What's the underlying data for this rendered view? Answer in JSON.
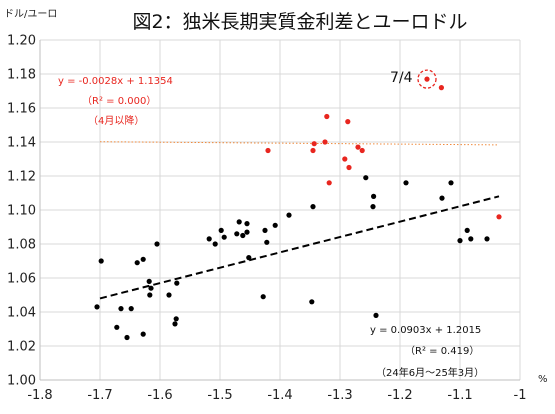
{
  "chart_data": {
    "type": "scatter",
    "title": "図2：独米長期実質金利差とユーロドル",
    "ylabel": "ドル/ユーロ",
    "xlabel": "%",
    "xlim": [
      -1.8,
      -1.0
    ],
    "ylim": [
      1.0,
      1.2
    ],
    "x_ticks": [
      "-1.8",
      "-1.7",
      "-1.6",
      "-1.5",
      "-1.4",
      "-1.3",
      "-1.2",
      "-1.1",
      "-1"
    ],
    "y_ticks": [
      "1.00",
      "1.02",
      "1.04",
      "1.06",
      "1.08",
      "1.10",
      "1.12",
      "1.14",
      "1.16",
      "1.18",
      "1.20"
    ],
    "grid": true,
    "colors": {
      "black_series": "#000000",
      "red_series": "#e8261f",
      "grid": "#d9d9d9",
      "trend_red": "#f08a3c"
    },
    "series": [
      {
        "period": "24年6月〜25年3月",
        "color": "#000000",
        "points": [
          [
            -1.705,
            1.043
          ],
          [
            -1.698,
            1.07
          ],
          [
            -1.672,
            1.031
          ],
          [
            -1.665,
            1.042
          ],
          [
            -1.655,
            1.025
          ],
          [
            -1.648,
            1.042
          ],
          [
            -1.638,
            1.069
          ],
          [
            -1.628,
            1.071
          ],
          [
            -1.628,
            1.027
          ],
          [
            -1.618,
            1.058
          ],
          [
            -1.617,
            1.05
          ],
          [
            -1.615,
            1.054
          ],
          [
            -1.605,
            1.08
          ],
          [
            -1.585,
            1.05
          ],
          [
            -1.575,
            1.033
          ],
          [
            -1.573,
            1.036
          ],
          [
            -1.572,
            1.057
          ],
          [
            -1.518,
            1.083
          ],
          [
            -1.508,
            1.08
          ],
          [
            -1.498,
            1.088
          ],
          [
            -1.493,
            1.084
          ],
          [
            -1.472,
            1.086
          ],
          [
            -1.468,
            1.093
          ],
          [
            -1.462,
            1.085
          ],
          [
            -1.455,
            1.092
          ],
          [
            -1.455,
            1.087
          ],
          [
            -1.452,
            1.072
          ],
          [
            -1.428,
            1.049
          ],
          [
            -1.425,
            1.088
          ],
          [
            -1.422,
            1.081
          ],
          [
            -1.408,
            1.091
          ],
          [
            -1.385,
            1.097
          ],
          [
            -1.345,
            1.102
          ],
          [
            -1.347,
            1.046
          ],
          [
            -1.257,
            1.119
          ],
          [
            -1.245,
            1.102
          ],
          [
            -1.244,
            1.108
          ],
          [
            -1.24,
            1.038
          ],
          [
            -1.19,
            1.116
          ],
          [
            -1.13,
            1.107
          ],
          [
            -1.115,
            1.116
          ],
          [
            -1.1,
            1.082
          ],
          [
            -1.088,
            1.088
          ],
          [
            -1.082,
            1.083
          ],
          [
            -1.055,
            1.083
          ]
        ]
      },
      {
        "period": "4月以降",
        "color": "#e8261f",
        "points": [
          [
            -1.42,
            1.135
          ],
          [
            -1.345,
            1.135
          ],
          [
            -1.343,
            1.139
          ],
          [
            -1.325,
            1.14
          ],
          [
            -1.322,
            1.155
          ],
          [
            -1.318,
            1.116
          ],
          [
            -1.292,
            1.13
          ],
          [
            -1.287,
            1.152
          ],
          [
            -1.285,
            1.125
          ],
          [
            -1.27,
            1.137
          ],
          [
            -1.263,
            1.135
          ],
          [
            -1.155,
            1.177
          ],
          [
            -1.131,
            1.172
          ],
          [
            -1.035,
            1.096
          ]
        ]
      }
    ],
    "highlight": {
      "label": "7/4",
      "point": [
        -1.155,
        1.177
      ]
    },
    "trendlines": [
      {
        "series": 0,
        "slope": 0.0903,
        "intercept": 1.2015,
        "x_range": [
          -1.7,
          -1.035
        ],
        "style": "dashed",
        "color": "#000000"
      },
      {
        "series": 1,
        "slope": -0.0028,
        "intercept": 1.1354,
        "x_range": [
          -1.7,
          -1.035
        ],
        "style": "dotted",
        "color": "#f08a3c"
      }
    ],
    "annotations": {
      "red_eq": "y = -0.0028x + 1.1354",
      "red_r2": "（R² = 0.000）",
      "red_period": "（4月以降）",
      "black_eq": "y = 0.0903x + 1.2015",
      "black_r2": "（R² = 0.419）",
      "black_period": "（24年6月～25年3月）"
    }
  }
}
